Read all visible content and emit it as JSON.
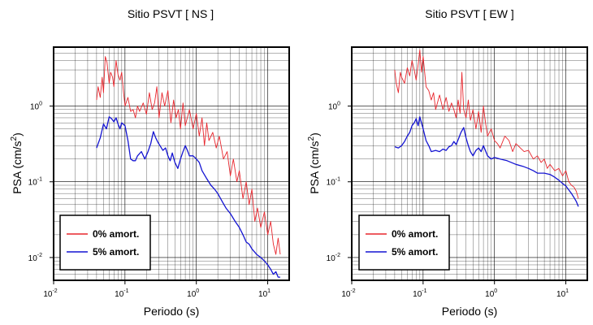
{
  "chart_data": [
    {
      "type": "line",
      "title": "Sitio PSVT [ NS ]",
      "xlabel": "Periodo (s)",
      "ylabel": "PSA (cm/s",
      "ylabel_sup": "2",
      "ylabel_close": ")",
      "x_scale": "log",
      "y_scale": "log",
      "xlim": [
        0.01,
        20
      ],
      "ylim": [
        0.005,
        6
      ],
      "grid": true,
      "legend_position": "bottom-left",
      "x_ticks": [
        {
          "base": "10",
          "exp": "-2"
        },
        {
          "base": "10",
          "exp": "-1"
        },
        {
          "base": "10",
          "exp": "0"
        },
        {
          "base": "10",
          "exp": "1"
        }
      ],
      "y_ticks": [
        {
          "base": "10",
          "exp": "-2"
        },
        {
          "base": "10",
          "exp": "-1"
        },
        {
          "base": "10",
          "exp": "0"
        }
      ],
      "series": [
        {
          "name": "0% amort.",
          "color": "#e8262d",
          "x": [
            0.04,
            0.042,
            0.045,
            0.048,
            0.05,
            0.053,
            0.056,
            0.06,
            0.063,
            0.067,
            0.07,
            0.075,
            0.08,
            0.085,
            0.09,
            0.095,
            0.1,
            0.11,
            0.12,
            0.13,
            0.14,
            0.15,
            0.16,
            0.18,
            0.2,
            0.22,
            0.24,
            0.26,
            0.28,
            0.3,
            0.33,
            0.36,
            0.4,
            0.44,
            0.48,
            0.52,
            0.56,
            0.6,
            0.65,
            0.7,
            0.8,
            0.9,
            1.0,
            1.1,
            1.2,
            1.3,
            1.4,
            1.5,
            1.7,
            1.9,
            2.1,
            2.4,
            2.7,
            3.0,
            3.3,
            3.7,
            4.0,
            4.5,
            5.0,
            5.5,
            6.0,
            6.6,
            7.2,
            8.0,
            9.0,
            10.0,
            11.0,
            12.0,
            13.0,
            14.0,
            15.0
          ],
          "y": [
            1.2,
            1.8,
            1.3,
            2.4,
            1.5,
            4.5,
            3.8,
            2.0,
            2.8,
            2.4,
            1.8,
            4.0,
            2.6,
            2.2,
            2.8,
            1.6,
            1.0,
            1.3,
            0.85,
            0.9,
            0.7,
            1.0,
            0.85,
            1.1,
            0.78,
            1.5,
            0.9,
            1.1,
            1.8,
            0.7,
            1.5,
            1.0,
            1.6,
            0.6,
            1.2,
            0.7,
            0.9,
            0.5,
            1.1,
            0.55,
            0.9,
            0.5,
            0.8,
            0.4,
            0.7,
            0.3,
            0.6,
            0.35,
            0.45,
            0.28,
            0.4,
            0.2,
            0.25,
            0.12,
            0.2,
            0.1,
            0.14,
            0.06,
            0.1,
            0.05,
            0.08,
            0.03,
            0.045,
            0.025,
            0.04,
            0.02,
            0.03,
            0.015,
            0.011,
            0.018,
            0.011
          ]
        },
        {
          "name": "5% amort.",
          "color": "#1414d2",
          "x": [
            0.04,
            0.045,
            0.05,
            0.055,
            0.06,
            0.065,
            0.07,
            0.075,
            0.08,
            0.085,
            0.09,
            0.1,
            0.11,
            0.12,
            0.13,
            0.14,
            0.15,
            0.17,
            0.19,
            0.21,
            0.23,
            0.25,
            0.27,
            0.29,
            0.31,
            0.34,
            0.37,
            0.4,
            0.43,
            0.46,
            0.5,
            0.55,
            0.6,
            0.65,
            0.7,
            0.75,
            0.8,
            0.9,
            1.0,
            1.1,
            1.2,
            1.4,
            1.6,
            1.8,
            2.0,
            2.3,
            2.6,
            3.0,
            3.5,
            4.0,
            4.5,
            5.0,
            5.5,
            6.0,
            7.0,
            8.0,
            9.0,
            10.0,
            11.0,
            12.0,
            13.0,
            14.0,
            15.0
          ],
          "y": [
            0.28,
            0.38,
            0.58,
            0.5,
            0.72,
            0.68,
            0.62,
            0.7,
            0.58,
            0.5,
            0.6,
            0.55,
            0.35,
            0.2,
            0.19,
            0.19,
            0.22,
            0.25,
            0.2,
            0.25,
            0.32,
            0.46,
            0.38,
            0.33,
            0.3,
            0.26,
            0.28,
            0.22,
            0.19,
            0.24,
            0.18,
            0.15,
            0.2,
            0.25,
            0.3,
            0.26,
            0.22,
            0.22,
            0.2,
            0.18,
            0.14,
            0.11,
            0.09,
            0.08,
            0.07,
            0.055,
            0.045,
            0.038,
            0.03,
            0.025,
            0.02,
            0.016,
            0.015,
            0.013,
            0.011,
            0.01,
            0.009,
            0.008,
            0.007,
            0.006,
            0.0065,
            0.0055,
            0.0055
          ]
        }
      ]
    },
    {
      "type": "line",
      "title": "Sitio PSVT [ EW ]",
      "xlabel": "Periodo (s)",
      "ylabel": "PSA (cm/s",
      "ylabel_sup": "2",
      "ylabel_close": ")",
      "x_scale": "log",
      "y_scale": "log",
      "xlim": [
        0.01,
        20
      ],
      "ylim": [
        0.005,
        6
      ],
      "grid": true,
      "legend_position": "bottom-left",
      "x_ticks": [
        {
          "base": "10",
          "exp": "-2"
        },
        {
          "base": "10",
          "exp": "-1"
        },
        {
          "base": "10",
          "exp": "0"
        },
        {
          "base": "10",
          "exp": "1"
        }
      ],
      "y_ticks": [
        {
          "base": "10",
          "exp": "-2"
        },
        {
          "base": "10",
          "exp": "-1"
        },
        {
          "base": "10",
          "exp": "0"
        }
      ],
      "series": [
        {
          "name": "0% amort.",
          "color": "#e8262d",
          "x": [
            0.04,
            0.042,
            0.045,
            0.048,
            0.05,
            0.055,
            0.06,
            0.065,
            0.07,
            0.075,
            0.08,
            0.085,
            0.09,
            0.095,
            0.1,
            0.11,
            0.12,
            0.13,
            0.14,
            0.15,
            0.17,
            0.19,
            0.21,
            0.23,
            0.25,
            0.27,
            0.29,
            0.31,
            0.33,
            0.35,
            0.37,
            0.4,
            0.43,
            0.46,
            0.5,
            0.55,
            0.6,
            0.65,
            0.7,
            0.75,
            0.8,
            0.9,
            1.0,
            1.1,
            1.2,
            1.4,
            1.6,
            1.8,
            2.0,
            2.3,
            2.6,
            3.0,
            3.5,
            4.0,
            4.5,
            5.0,
            5.5,
            6.0,
            7.0,
            8.0,
            9.0,
            10.0,
            11.0,
            12.0,
            13.0,
            14.0,
            15.0
          ],
          "y": [
            3.0,
            2.0,
            1.5,
            2.8,
            2.4,
            2.0,
            3.2,
            2.5,
            4.0,
            3.0,
            2.2,
            3.5,
            5.5,
            2.8,
            4.5,
            1.8,
            1.6,
            1.2,
            1.5,
            0.9,
            1.4,
            0.9,
            1.3,
            0.85,
            1.1,
            0.9,
            0.7,
            1.2,
            0.8,
            2.8,
            0.9,
            0.7,
            1.2,
            0.65,
            0.9,
            0.5,
            0.85,
            0.45,
            1.0,
            0.6,
            0.4,
            0.5,
            0.35,
            0.32,
            0.28,
            0.4,
            0.35,
            0.25,
            0.32,
            0.28,
            0.25,
            0.26,
            0.2,
            0.22,
            0.18,
            0.2,
            0.15,
            0.17,
            0.14,
            0.15,
            0.12,
            0.14,
            0.1,
            0.09,
            0.085,
            0.075,
            0.06
          ]
        },
        {
          "name": "5% amort.",
          "color": "#1414d2",
          "x": [
            0.04,
            0.045,
            0.05,
            0.055,
            0.06,
            0.065,
            0.07,
            0.075,
            0.08,
            0.085,
            0.09,
            0.1,
            0.11,
            0.12,
            0.13,
            0.15,
            0.17,
            0.19,
            0.21,
            0.23,
            0.25,
            0.27,
            0.29,
            0.31,
            0.34,
            0.37,
            0.4,
            0.43,
            0.46,
            0.5,
            0.55,
            0.6,
            0.65,
            0.7,
            0.8,
            0.9,
            1.0,
            1.2,
            1.5,
            2.0,
            2.5,
            3.0,
            3.5,
            4.0,
            5.0,
            6.0,
            7.0,
            8.0,
            9.0,
            10.0,
            11.0,
            12.0,
            13.0,
            14.0,
            15.0
          ],
          "y": [
            0.29,
            0.28,
            0.3,
            0.34,
            0.4,
            0.45,
            0.55,
            0.6,
            0.68,
            0.55,
            0.72,
            0.5,
            0.35,
            0.3,
            0.25,
            0.26,
            0.25,
            0.27,
            0.26,
            0.29,
            0.3,
            0.34,
            0.31,
            0.36,
            0.45,
            0.52,
            0.38,
            0.3,
            0.25,
            0.22,
            0.26,
            0.28,
            0.25,
            0.3,
            0.22,
            0.2,
            0.21,
            0.2,
            0.19,
            0.17,
            0.16,
            0.15,
            0.14,
            0.13,
            0.13,
            0.125,
            0.115,
            0.105,
            0.095,
            0.088,
            0.078,
            0.07,
            0.062,
            0.055,
            0.047
          ]
        }
      ]
    }
  ]
}
